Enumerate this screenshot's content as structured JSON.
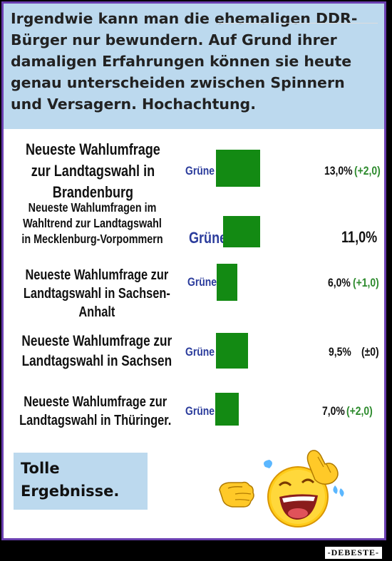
{
  "header": {
    "text": "Irgendwie kann man die ehemaligen DDR-Bürger nur bewundern. Auf Grund ihrer damaligen Erfahrungen können sie heute genau unterscheiden zwischen Spinnern und Versagern. Hochachtung."
  },
  "polls": [
    {
      "label": "Neueste Wahlumfrage zur Landtagswahl in Brandenburg",
      "party": "Grüne",
      "percent": "13,0%",
      "delta": "(+2,0)",
      "value": 13.0
    },
    {
      "label": "Neueste Wahlumfragen im Wahltrend zur Landtagswahl in Mecklenburg-Vorpommern",
      "party": "Grüne",
      "percent": "11,0%",
      "delta": "",
      "value": 11.0
    },
    {
      "label": "Neueste Wahlumfrage zur Landtagswahl in Sachsen-Anhalt",
      "party": "Grüne",
      "percent": "6,0%",
      "delta": "(+1,0)",
      "value": 6.0
    },
    {
      "label": "Neueste Wahlumfrage zur Landtagswahl in Sachsen",
      "party": "Grüne",
      "percent": "9,5%",
      "delta": "(±0)",
      "value": 9.5
    },
    {
      "label": "Neueste Wahlumfrage zur Landtagswahl in Thüringer.",
      "party": "Grüne",
      "percent": "7,0%",
      "delta": "(+2,0)",
      "value": 7.0
    }
  ],
  "footer_box": {
    "line1": "Tolle",
    "line2": "Ergebnisse."
  },
  "emoji": "laughing-crying-pointing-emoji",
  "watermark": "-DEBESTE-",
  "colors": {
    "header_bg": "#bcd9ee",
    "bar": "#138a13",
    "party": "#2b3c9c",
    "delta_green": "#2e8b2e",
    "frame": "#6a3fb0"
  }
}
